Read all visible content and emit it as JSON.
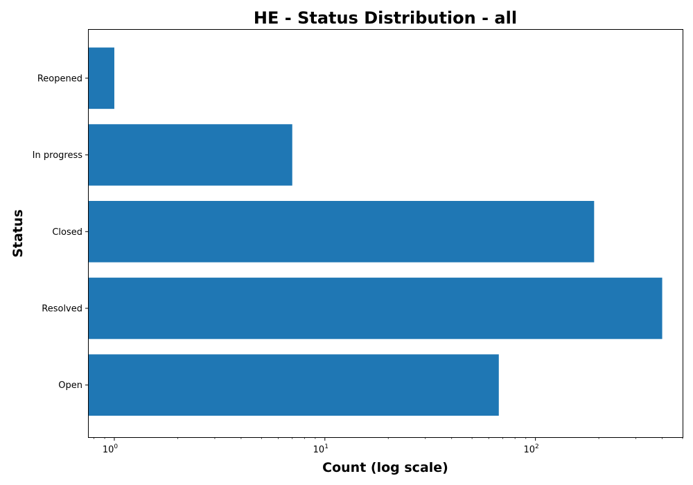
{
  "chart_data": {
    "type": "bar",
    "orientation": "horizontal",
    "title": "HE - Status Distribution - all",
    "xlabel": "Count (log scale)",
    "ylabel": "Status",
    "x_scale": "log",
    "xlim": [
      0.75,
      500
    ],
    "x_major_ticks": [
      {
        "base": "10",
        "exp": "0",
        "value": 1
      },
      {
        "base": "10",
        "exp": "1",
        "value": 10
      },
      {
        "base": "10",
        "exp": "2",
        "value": 100
      }
    ],
    "categories": [
      "Reopened",
      "In progress",
      "Closed",
      "Resolved",
      "Open"
    ],
    "values": [
      1,
      7,
      190,
      400,
      67
    ],
    "bar_color": "#1f77b4",
    "grid": false,
    "legend": "none"
  }
}
